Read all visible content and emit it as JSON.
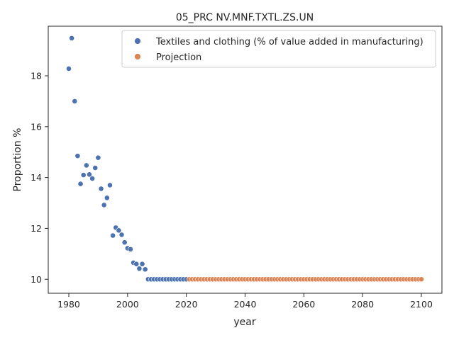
{
  "chart_data": {
    "type": "scatter",
    "title": "05_PRC NV.MNF.TXTL.ZS.UN",
    "xlabel": "year",
    "ylabel": "Proportion %",
    "xlim": [
      1973,
      2107
    ],
    "ylim": [
      9.45,
      19.95
    ],
    "xticks": [
      1980,
      2000,
      2020,
      2040,
      2060,
      2080,
      2100
    ],
    "yticks": [
      10,
      12,
      14,
      16,
      18
    ],
    "grid": false,
    "legend_position": "top-right",
    "series": [
      {
        "name": "Textiles and clothing (% of value added in manufacturing)",
        "color": "#4c72b0",
        "x": [
          1980,
          1981,
          1982,
          1983,
          1984,
          1985,
          1986,
          1987,
          1988,
          1989,
          1990,
          1991,
          1992,
          1993,
          1994,
          1995,
          1996,
          1997,
          1998,
          1999,
          2000,
          2001,
          2002,
          2003,
          2004,
          2005,
          2006,
          2007,
          2008,
          2009,
          2010,
          2011,
          2012,
          2013,
          2014,
          2015,
          2016,
          2017,
          2018,
          2019,
          2020
        ],
        "y": [
          18.28,
          19.48,
          17.0,
          14.85,
          13.75,
          14.1,
          14.48,
          14.12,
          13.96,
          14.38,
          14.78,
          13.56,
          12.92,
          13.2,
          13.7,
          11.72,
          12.03,
          11.92,
          11.75,
          11.45,
          11.22,
          11.18,
          10.65,
          10.6,
          10.42,
          10.6,
          10.39,
          10.0,
          10.0,
          10.0,
          10.0,
          10.0,
          10.0,
          10.0,
          10.0,
          10.0,
          10.0,
          10.0,
          10.0,
          10.0,
          10.0
        ]
      },
      {
        "name": "Projection",
        "color": "#dd8452",
        "x": [
          2021,
          2022,
          2023,
          2024,
          2025,
          2026,
          2027,
          2028,
          2029,
          2030,
          2031,
          2032,
          2033,
          2034,
          2035,
          2036,
          2037,
          2038,
          2039,
          2040,
          2041,
          2042,
          2043,
          2044,
          2045,
          2046,
          2047,
          2048,
          2049,
          2050,
          2051,
          2052,
          2053,
          2054,
          2055,
          2056,
          2057,
          2058,
          2059,
          2060,
          2061,
          2062,
          2063,
          2064,
          2065,
          2066,
          2067,
          2068,
          2069,
          2070,
          2071,
          2072,
          2073,
          2074,
          2075,
          2076,
          2077,
          2078,
          2079,
          2080,
          2081,
          2082,
          2083,
          2084,
          2085,
          2086,
          2087,
          2088,
          2089,
          2090,
          2091,
          2092,
          2093,
          2094,
          2095,
          2096,
          2097,
          2098,
          2099,
          2100
        ],
        "y": [
          10.0,
          10.0,
          10.0,
          10.0,
          10.0,
          10.0,
          10.0,
          10.0,
          10.0,
          10.0,
          10.0,
          10.0,
          10.0,
          10.0,
          10.0,
          10.0,
          10.0,
          10.0,
          10.0,
          10.0,
          10.0,
          10.0,
          10.0,
          10.0,
          10.0,
          10.0,
          10.0,
          10.0,
          10.0,
          10.0,
          10.0,
          10.0,
          10.0,
          10.0,
          10.0,
          10.0,
          10.0,
          10.0,
          10.0,
          10.0,
          10.0,
          10.0,
          10.0,
          10.0,
          10.0,
          10.0,
          10.0,
          10.0,
          10.0,
          10.0,
          10.0,
          10.0,
          10.0,
          10.0,
          10.0,
          10.0,
          10.0,
          10.0,
          10.0,
          10.0,
          10.0,
          10.0,
          10.0,
          10.0,
          10.0,
          10.0,
          10.0,
          10.0,
          10.0,
          10.0,
          10.0,
          10.0,
          10.0,
          10.0,
          10.0,
          10.0,
          10.0,
          10.0,
          10.0,
          10.0
        ]
      }
    ]
  }
}
